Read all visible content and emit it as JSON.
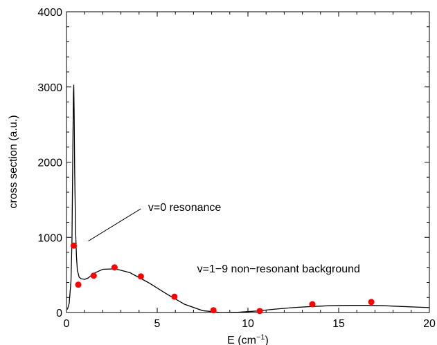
{
  "chart_data": {
    "type": "line",
    "title": "",
    "xlabel": "E (cm",
    "xlabel_sup": "−1",
    "xlabel_close": ")",
    "ylabel": "cross section (a.u.)",
    "xlim": [
      0,
      20
    ],
    "ylim": [
      0,
      4000
    ],
    "x_ticks": [
      "0",
      "5",
      "10",
      "15",
      "20"
    ],
    "y_ticks": [
      "0",
      "1000",
      "2000",
      "3000",
      "4000"
    ],
    "grid": false,
    "colors": {
      "curve": "#000000",
      "points": "#ff0000"
    },
    "series": [
      {
        "type": "line",
        "x": [
          0.05,
          0.15,
          0.25,
          0.3,
          0.35,
          0.38,
          0.4,
          0.42,
          0.45,
          0.5,
          0.55,
          0.6,
          0.7,
          0.8,
          1.0,
          1.2,
          1.5,
          2.0,
          2.7,
          3.5,
          4.5,
          5.5,
          6.5,
          7.5,
          8.5,
          9.5,
          10.5,
          11.5,
          12.5,
          13.5,
          14.5,
          15.5,
          16.5,
          17.5,
          18.5,
          19.5,
          20.0
        ],
        "y": [
          40,
          120,
          420,
          950,
          2200,
          2900,
          3030,
          2700,
          1900,
          1100,
          750,
          560,
          470,
          450,
          440,
          460,
          520,
          575,
          580,
          530,
          400,
          250,
          110,
          25,
          0,
          5,
          20,
          45,
          65,
          80,
          90,
          95,
          95,
          90,
          80,
          70,
          65
        ]
      },
      {
        "type": "scatter",
        "x": [
          0.4,
          0.65,
          1.5,
          2.65,
          4.1,
          5.95,
          8.1,
          10.65,
          13.55,
          16.8
        ],
        "y": [
          890,
          370,
          490,
          600,
          480,
          210,
          30,
          20,
          110,
          140
        ]
      }
    ],
    "annotations": [
      {
        "text": "v=0 resonance",
        "x": 4.5,
        "y": 1400
      },
      {
        "text": "v=1−9 non−resonant background",
        "x": 7.2,
        "y": 580
      }
    ],
    "leader_line": {
      "x1": 1.2,
      "y1": 950,
      "x2": 4.1,
      "y2": 1380
    }
  }
}
